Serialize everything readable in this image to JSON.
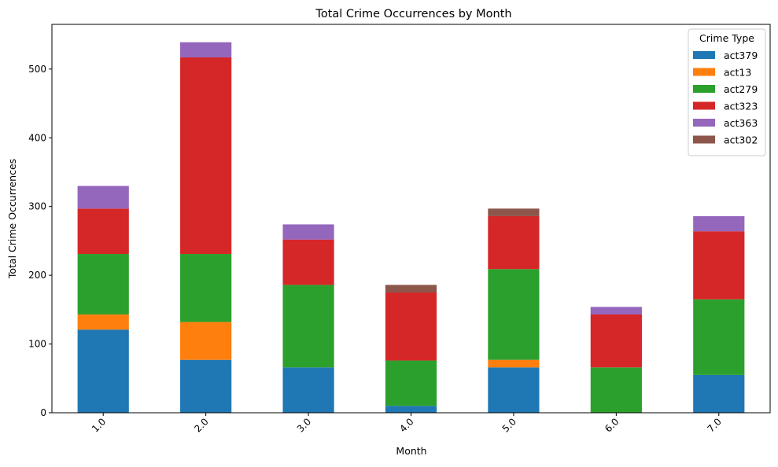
{
  "chart_data": {
    "type": "bar",
    "stacked": true,
    "title": "Total Crime Occurrences by Month",
    "xlabel": "Month",
    "ylabel": "Total Crime Occurrences",
    "ylim": [
      0,
      565
    ],
    "yticks": [
      0,
      100,
      200,
      300,
      400,
      500
    ],
    "categories": [
      "1.0",
      "2.0",
      "3.0",
      "4.0",
      "5.0",
      "6.0",
      "7.0"
    ],
    "legend": {
      "title": "Crime Type",
      "position": "top-right"
    },
    "series": [
      {
        "name": "act379",
        "color": "#1f77b4",
        "values": [
          121,
          77,
          66,
          10,
          66,
          0,
          55
        ]
      },
      {
        "name": "act13",
        "color": "#ff7f0e",
        "values": [
          22,
          55,
          0,
          0,
          11,
          0,
          0
        ]
      },
      {
        "name": "act279",
        "color": "#2ca02c",
        "values": [
          88,
          99,
          120,
          66,
          132,
          66,
          110
        ]
      },
      {
        "name": "act323",
        "color": "#d62728",
        "values": [
          66,
          286,
          66,
          99,
          77,
          77,
          99
        ]
      },
      {
        "name": "act363",
        "color": "#9467bd",
        "values": [
          33,
          22,
          22,
          0,
          0,
          11,
          22
        ]
      },
      {
        "name": "act302",
        "color": "#8c564b",
        "values": [
          0,
          0,
          0,
          11,
          11,
          0,
          0
        ]
      }
    ]
  }
}
